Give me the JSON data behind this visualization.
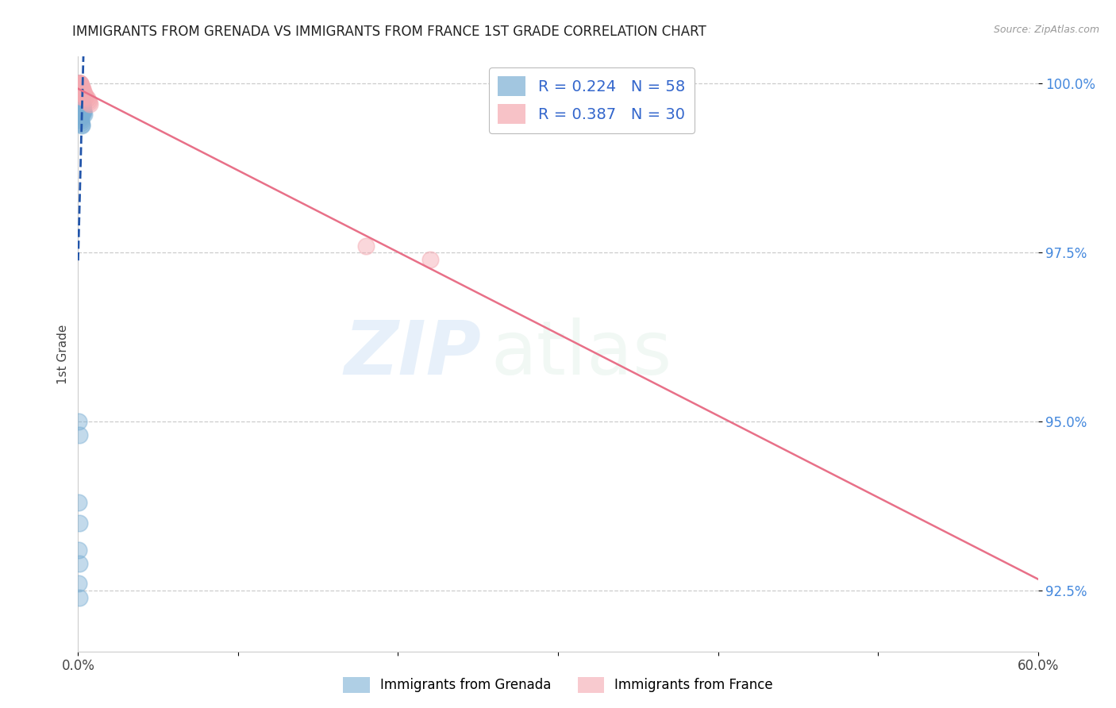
{
  "title": "IMMIGRANTS FROM GRENADA VS IMMIGRANTS FROM FRANCE 1ST GRADE CORRELATION CHART",
  "source": "Source: ZipAtlas.com",
  "ylabel": "1st Grade",
  "legend_labels": [
    "Immigrants from Grenada",
    "Immigrants from France"
  ],
  "r_grenada": 0.224,
  "n_grenada": 58,
  "r_france": 0.387,
  "n_france": 30,
  "color_grenada": "#7BAFD4",
  "color_france": "#F4A8B0",
  "trendline_grenada_color": "#2255AA",
  "trendline_france_color": "#E87088",
  "legend_text_color": "#3366CC",
  "xlim": [
    0.0,
    0.6
  ],
  "ylim": [
    0.916,
    1.004
  ],
  "yticks": [
    1.0,
    0.975,
    0.95,
    0.925
  ],
  "ytick_labels": [
    "100.0%",
    "97.5%",
    "95.0%",
    "92.5%"
  ],
  "xtick_positions": [
    0.0,
    0.1,
    0.2,
    0.3,
    0.4,
    0.5,
    0.6
  ],
  "xtick_labels": [
    "0.0%",
    "",
    "",
    "",
    "",
    "",
    "60.0%"
  ],
  "background_color": "#FFFFFF",
  "grenada_x": [
    0.0005,
    0.0005,
    0.0008,
    0.001,
    0.001,
    0.0012,
    0.0015,
    0.0015,
    0.0018,
    0.002,
    0.002,
    0.0022,
    0.0025,
    0.0025,
    0.0028,
    0.003,
    0.003,
    0.0035,
    0.0035,
    0.004,
    0.0005,
    0.0008,
    0.001,
    0.0012,
    0.0015,
    0.0018,
    0.002,
    0.0022,
    0.0025,
    0.0028,
    0.0005,
    0.0008,
    0.001,
    0.0012,
    0.0015,
    0.0018,
    0.002,
    0.0022,
    0.0025,
    0.0028,
    0.0005,
    0.0005,
    0.0008,
    0.001,
    0.0012,
    0.0015,
    0.0018,
    0.002,
    0.0022,
    0.0025,
    0.0005,
    0.0008,
    0.0005,
    0.0008,
    0.0005,
    0.0008,
    0.0005,
    0.0008
  ],
  "grenada_y": [
    1.0,
    1.0,
    1.0,
    1.0,
    0.9995,
    0.999,
    0.999,
    0.9985,
    0.9985,
    0.998,
    0.998,
    0.9978,
    0.9975,
    0.9972,
    0.997,
    0.9968,
    0.9965,
    0.996,
    0.9958,
    0.9955,
    0.999,
    0.9988,
    0.9985,
    0.9982,
    0.9978,
    0.9975,
    0.9972,
    0.997,
    0.9968,
    0.9965,
    0.9978,
    0.9975,
    0.9972,
    0.997,
    0.9968,
    0.9965,
    0.9962,
    0.996,
    0.9958,
    0.9955,
    0.996,
    0.9958,
    0.9955,
    0.9952,
    0.995,
    0.9948,
    0.9945,
    0.9942,
    0.994,
    0.9938,
    0.95,
    0.948,
    0.938,
    0.935,
    0.931,
    0.929,
    0.926,
    0.924
  ],
  "france_x": [
    0.0005,
    0.0008,
    0.001,
    0.0012,
    0.0015,
    0.0015,
    0.0018,
    0.002,
    0.0022,
    0.0025,
    0.0028,
    0.003,
    0.0035,
    0.004,
    0.0045,
    0.005,
    0.0055,
    0.006,
    0.0065,
    0.007,
    0.0008,
    0.001,
    0.0012,
    0.0015,
    0.0018,
    0.002,
    0.0022,
    0.0025,
    0.18,
    0.22
  ],
  "france_y": [
    1.0,
    1.0,
    1.0,
    1.0,
    1.0,
    0.9998,
    0.9998,
    0.9995,
    0.9995,
    0.9993,
    0.9992,
    0.999,
    0.9988,
    0.9985,
    0.9982,
    0.998,
    0.9978,
    0.9975,
    0.9972,
    0.997,
    0.9998,
    0.9995,
    0.9992,
    0.999,
    0.9988,
    0.9985,
    0.9982,
    0.998,
    0.976,
    0.974
  ],
  "watermark_zip": "ZIP",
  "watermark_atlas": "atlas",
  "title_fontsize": 12,
  "axis_label_color": "#444444",
  "tick_color_y": "#4488DD",
  "tick_color_x": "#444444",
  "grid_color": "#CCCCCC",
  "grid_style": "--"
}
